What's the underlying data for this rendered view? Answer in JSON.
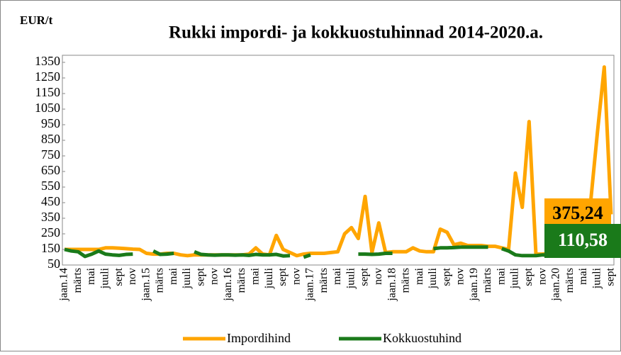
{
  "chart_data": {
    "type": "line",
    "title": "Rukki impordi- ja kokkuostuhinnad 2014-2020.a.",
    "y_label": "EUR/t",
    "categories": [
      "jaan.14",
      null,
      "märts",
      null,
      "mai",
      null,
      "juuli",
      null,
      "sept",
      null,
      "nov",
      null,
      "jaan.15",
      null,
      "märts",
      null,
      "mai",
      null,
      "juuli",
      null,
      "sept",
      null,
      "nov",
      null,
      "jaan.16",
      null,
      "märts",
      null,
      "mai",
      null,
      "juuli",
      null,
      "sept",
      null,
      "nov",
      null,
      "jaan.17",
      null,
      "märts",
      null,
      "mai",
      null,
      "juuli",
      null,
      "sept",
      null,
      "nov",
      null,
      "jaan.18",
      null,
      "märts",
      null,
      "mai",
      null,
      "juuli",
      null,
      "sept",
      null,
      "nov",
      null,
      "jaan.19",
      null,
      "märts",
      null,
      "mai",
      null,
      "juuli",
      null,
      "sept",
      null,
      "nov",
      null,
      "jaan.20",
      null,
      "märts",
      null,
      "mai",
      null,
      "juuli",
      null,
      "sept"
    ],
    "series": [
      {
        "name": "Impordihind",
        "color": "#ffa500",
        "values": [
          150,
          150,
          150,
          150,
          150,
          150,
          160,
          160,
          158,
          155,
          152,
          150,
          125,
          120,
          120,
          125,
          125,
          115,
          110,
          115,
          115,
          115,
          115,
          115,
          115,
          115,
          115,
          120,
          160,
          120,
          115,
          240,
          150,
          130,
          110,
          120,
          125,
          125,
          125,
          130,
          135,
          250,
          290,
          220,
          490,
          130,
          320,
          130,
          135,
          135,
          135,
          160,
          140,
          135,
          135,
          280,
          260,
          180,
          190,
          175,
          175,
          175,
          170,
          170,
          160,
          150,
          640,
          420,
          970,
          120,
          120,
          125,
          130,
          135,
          140,
          150,
          300,
          450,
          900,
          1320,
          375.24
        ]
      },
      {
        "name": "Kokkuostuhind",
        "color": "#1a7a1a",
        "values": [
          150,
          140,
          135,
          105,
          120,
          140,
          120,
          115,
          112,
          118,
          120,
          null,
          null,
          140,
          118,
          120,
          125,
          null,
          null,
          135,
          118,
          115,
          113,
          115,
          115,
          113,
          115,
          112,
          118,
          115,
          115,
          118,
          108,
          110,
          null,
          100,
          115,
          null,
          null,
          null,
          null,
          null,
          null,
          120,
          120,
          118,
          120,
          125,
          125,
          null,
          null,
          null,
          null,
          null,
          155,
          160,
          160,
          162,
          165,
          165,
          165,
          165,
          165,
          null,
          155,
          140,
          115,
          110,
          110,
          110,
          115,
          112,
          110,
          110,
          110,
          110,
          110,
          110,
          110,
          110,
          110.58
        ]
      }
    ],
    "annotations": [
      "375,24",
      "110,58"
    ],
    "ylim": [
      50,
      1350
    ],
    "yticks": [
      50,
      150,
      250,
      350,
      450,
      550,
      650,
      750,
      850,
      950,
      1050,
      1150,
      1250,
      1350
    ],
    "grid": false,
    "legend": "bottom"
  }
}
